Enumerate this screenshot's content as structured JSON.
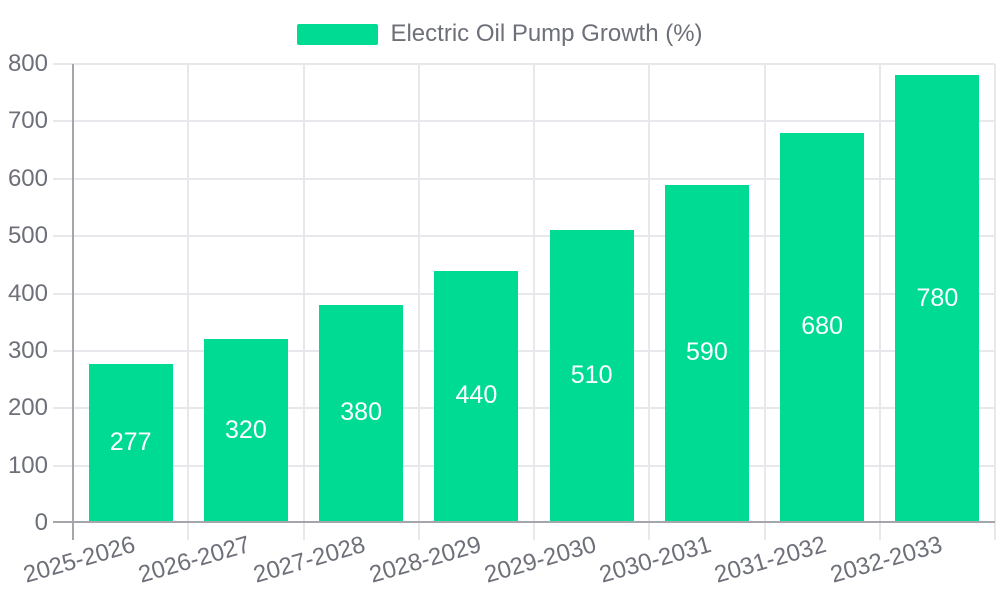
{
  "legend": {
    "label": "Electric Oil Pump Growth (%)"
  },
  "colors": {
    "bar": "#00DB94",
    "grid": "#E6E8EC",
    "axis": "#A4A6AC",
    "tick_label": "#6E7079",
    "value_label": "#FFFFFF",
    "background": "#FFFFFF"
  },
  "chart_data": {
    "type": "bar",
    "title": "Electric Oil Pump Growth (%)",
    "series_name": "Electric Oil Pump Growth (%)",
    "categories": [
      "2025-2026",
      "2026-2027",
      "2027-2028",
      "2028-2029",
      "2029-2030",
      "2030-2031",
      "2031-2032",
      "2032-2033"
    ],
    "values": [
      277,
      320,
      380,
      440,
      510,
      590,
      680,
      780
    ],
    "xlabel": "",
    "ylabel": "",
    "ylim": [
      0,
      800
    ],
    "yticks": [
      0,
      100,
      200,
      300,
      400,
      500,
      600,
      700,
      800
    ],
    "grid": true,
    "legend_position": "top-center",
    "value_labels": "inside-center",
    "x_label_rotation_deg": -16
  }
}
